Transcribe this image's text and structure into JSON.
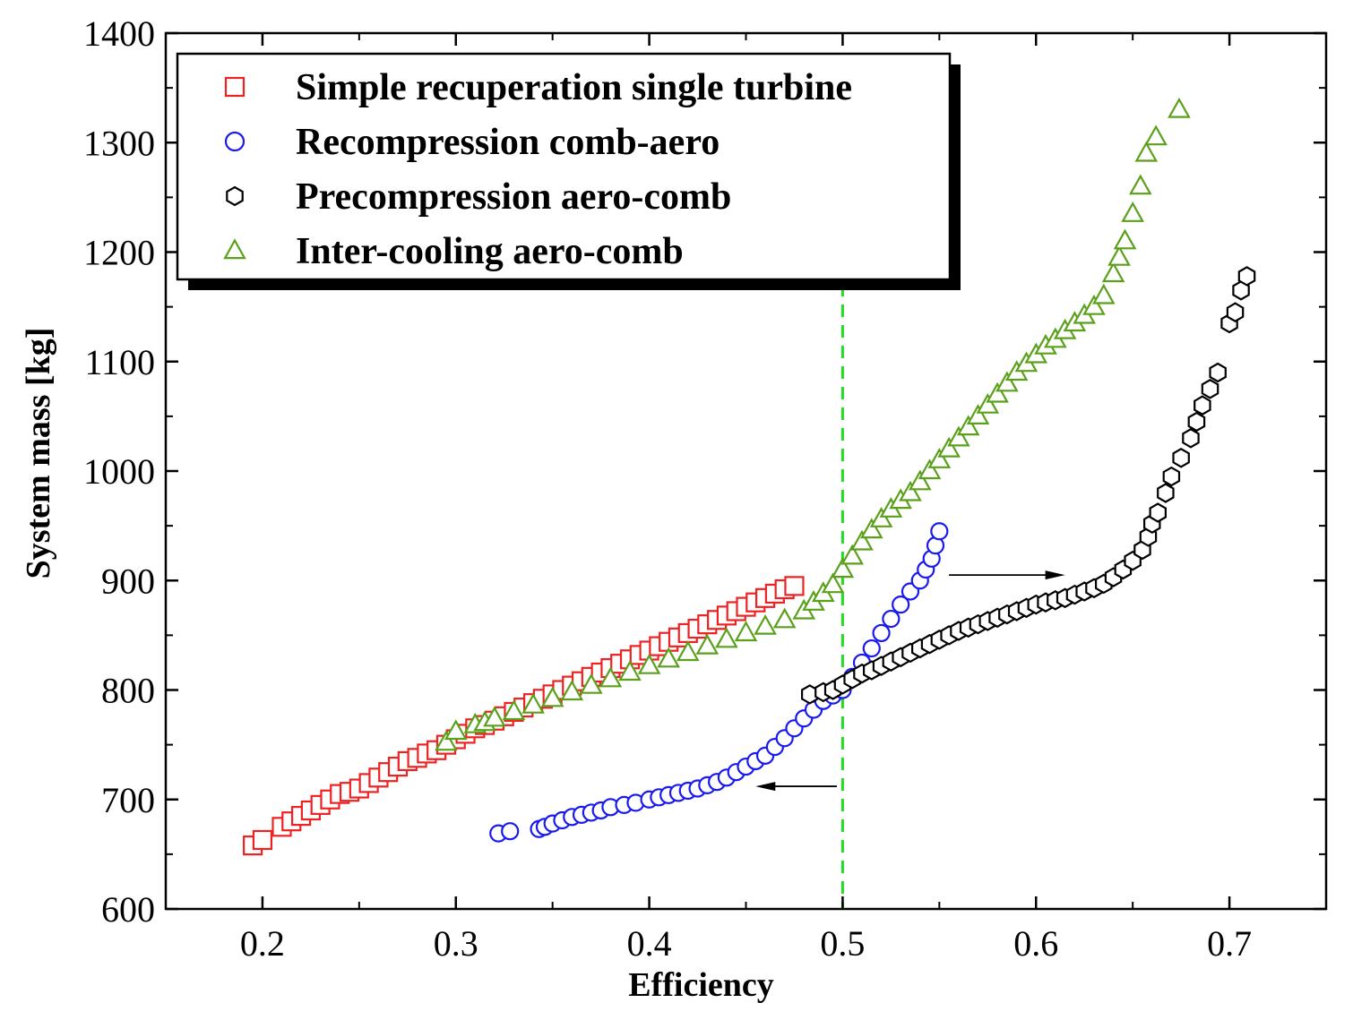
{
  "chart_data": {
    "type": "scatter",
    "xlabel": "Efficiency",
    "ylabel": "System mass [kg]",
    "xlim": [
      0.15,
      0.75
    ],
    "ylim": [
      600,
      1400
    ],
    "xticks": [
      0.2,
      0.3,
      0.4,
      0.5,
      0.6,
      0.7
    ],
    "xtick_labels": [
      "0.2",
      "0.3",
      "0.4",
      "0.5",
      "0.6",
      "0.7"
    ],
    "yticks": [
      600,
      700,
      800,
      900,
      1000,
      1100,
      1200,
      1300,
      1400
    ],
    "ytick_labels": [
      "600",
      "700",
      "800",
      "900",
      "1000",
      "1100",
      "1200",
      "1300",
      "1400"
    ],
    "legend_position": "top-left",
    "reference_line": {
      "x": 0.5,
      "style": "dashed",
      "color": "#22dd22"
    },
    "annotations": [
      {
        "type": "arrow",
        "from": [
          0.555,
          905
        ],
        "to": [
          0.615,
          905
        ],
        "description": "arrow pointing right"
      },
      {
        "type": "arrow",
        "from": [
          0.497,
          712
        ],
        "to": [
          0.455,
          712
        ],
        "description": "arrow pointing left"
      }
    ],
    "series": [
      {
        "name": "Simple recuperation single turbine",
        "marker": "square",
        "color": "#ee2222",
        "x": [
          0.195,
          0.2,
          0.21,
          0.215,
          0.22,
          0.225,
          0.23,
          0.235,
          0.24,
          0.245,
          0.25,
          0.255,
          0.26,
          0.265,
          0.27,
          0.275,
          0.28,
          0.285,
          0.29,
          0.295,
          0.3,
          0.305,
          0.31,
          0.315,
          0.32,
          0.325,
          0.33,
          0.335,
          0.34,
          0.345,
          0.35,
          0.355,
          0.36,
          0.365,
          0.37,
          0.375,
          0.38,
          0.385,
          0.39,
          0.395,
          0.4,
          0.405,
          0.41,
          0.415,
          0.42,
          0.425,
          0.43,
          0.435,
          0.44,
          0.445,
          0.45,
          0.455,
          0.46,
          0.465,
          0.47,
          0.475
        ],
        "y": [
          658,
          663,
          675,
          680,
          685,
          690,
          695,
          700,
          705,
          707,
          710,
          715,
          720,
          725,
          730,
          735,
          738,
          742,
          745,
          750,
          755,
          760,
          765,
          768,
          772,
          776,
          780,
          784,
          788,
          792,
          796,
          800,
          804,
          808,
          812,
          816,
          820,
          824,
          828,
          832,
          836,
          840,
          844,
          848,
          852,
          856,
          860,
          864,
          868,
          872,
          876,
          880,
          884,
          888,
          892,
          895
        ]
      },
      {
        "name": "Recompression comb-aero",
        "marker": "circle",
        "color": "#1a1aee",
        "x": [
          0.322,
          0.328,
          0.343,
          0.346,
          0.35,
          0.355,
          0.36,
          0.365,
          0.37,
          0.375,
          0.38,
          0.387,
          0.393,
          0.4,
          0.405,
          0.41,
          0.415,
          0.42,
          0.425,
          0.43,
          0.435,
          0.44,
          0.445,
          0.45,
          0.455,
          0.46,
          0.465,
          0.47,
          0.475,
          0.48,
          0.485,
          0.49,
          0.495,
          0.5,
          0.505,
          0.51,
          0.515,
          0.52,
          0.525,
          0.53,
          0.535,
          0.54,
          0.543,
          0.546,
          0.548,
          0.55
        ],
        "y": [
          669,
          671,
          673,
          675,
          678,
          681,
          684,
          686,
          688,
          690,
          693,
          695,
          697,
          700,
          702,
          704,
          706,
          708,
          710,
          713,
          716,
          720,
          725,
          730,
          735,
          740,
          748,
          756,
          765,
          774,
          782,
          790,
          795,
          800,
          812,
          825,
          838,
          852,
          865,
          878,
          890,
          900,
          910,
          920,
          932,
          945
        ]
      },
      {
        "name": "Precompression aero-comb",
        "marker": "hexagon",
        "color": "#000000",
        "x": [
          0.483,
          0.49,
          0.495,
          0.5,
          0.505,
          0.51,
          0.515,
          0.52,
          0.525,
          0.53,
          0.535,
          0.54,
          0.545,
          0.55,
          0.555,
          0.56,
          0.565,
          0.57,
          0.575,
          0.58,
          0.585,
          0.59,
          0.595,
          0.6,
          0.605,
          0.61,
          0.615,
          0.62,
          0.625,
          0.63,
          0.635,
          0.64,
          0.645,
          0.65,
          0.655,
          0.658,
          0.66,
          0.663,
          0.667,
          0.67,
          0.675,
          0.68,
          0.683,
          0.686,
          0.69,
          0.694,
          0.7,
          0.703,
          0.706,
          0.709
        ],
        "y": [
          796,
          798,
          800,
          805,
          810,
          815,
          818,
          822,
          826,
          830,
          834,
          838,
          842,
          846,
          850,
          854,
          857,
          860,
          863,
          866,
          869,
          872,
          875,
          878,
          880,
          882,
          884,
          887,
          890,
          893,
          897,
          903,
          910,
          918,
          928,
          940,
          952,
          962,
          980,
          995,
          1012,
          1030,
          1045,
          1060,
          1075,
          1090,
          1135,
          1145,
          1165,
          1178
        ]
      },
      {
        "name": "Inter-cooling aero-comb",
        "marker": "triangle",
        "color": "#5aa01a",
        "x": [
          0.295,
          0.3,
          0.31,
          0.315,
          0.32,
          0.33,
          0.34,
          0.35,
          0.36,
          0.37,
          0.38,
          0.39,
          0.4,
          0.41,
          0.42,
          0.43,
          0.44,
          0.45,
          0.46,
          0.47,
          0.48,
          0.485,
          0.49,
          0.495,
          0.5,
          0.505,
          0.51,
          0.515,
          0.52,
          0.525,
          0.53,
          0.535,
          0.54,
          0.545,
          0.55,
          0.555,
          0.56,
          0.565,
          0.57,
          0.575,
          0.58,
          0.585,
          0.59,
          0.595,
          0.6,
          0.605,
          0.61,
          0.615,
          0.62,
          0.625,
          0.63,
          0.635,
          0.64,
          0.643,
          0.646,
          0.65,
          0.654,
          0.657,
          0.662,
          0.674
        ],
        "y": [
          752,
          762,
          768,
          770,
          774,
          780,
          786,
          792,
          798,
          804,
          810,
          816,
          822,
          828,
          834,
          840,
          846,
          852,
          858,
          864,
          872,
          880,
          888,
          896,
          910,
          922,
          935,
          946,
          956,
          965,
          973,
          980,
          990,
          1000,
          1010,
          1020,
          1030,
          1040,
          1050,
          1060,
          1070,
          1080,
          1090,
          1098,
          1106,
          1114,
          1120,
          1128,
          1135,
          1142,
          1150,
          1160,
          1180,
          1195,
          1210,
          1235,
          1260,
          1290,
          1305,
          1330
        ]
      }
    ]
  }
}
